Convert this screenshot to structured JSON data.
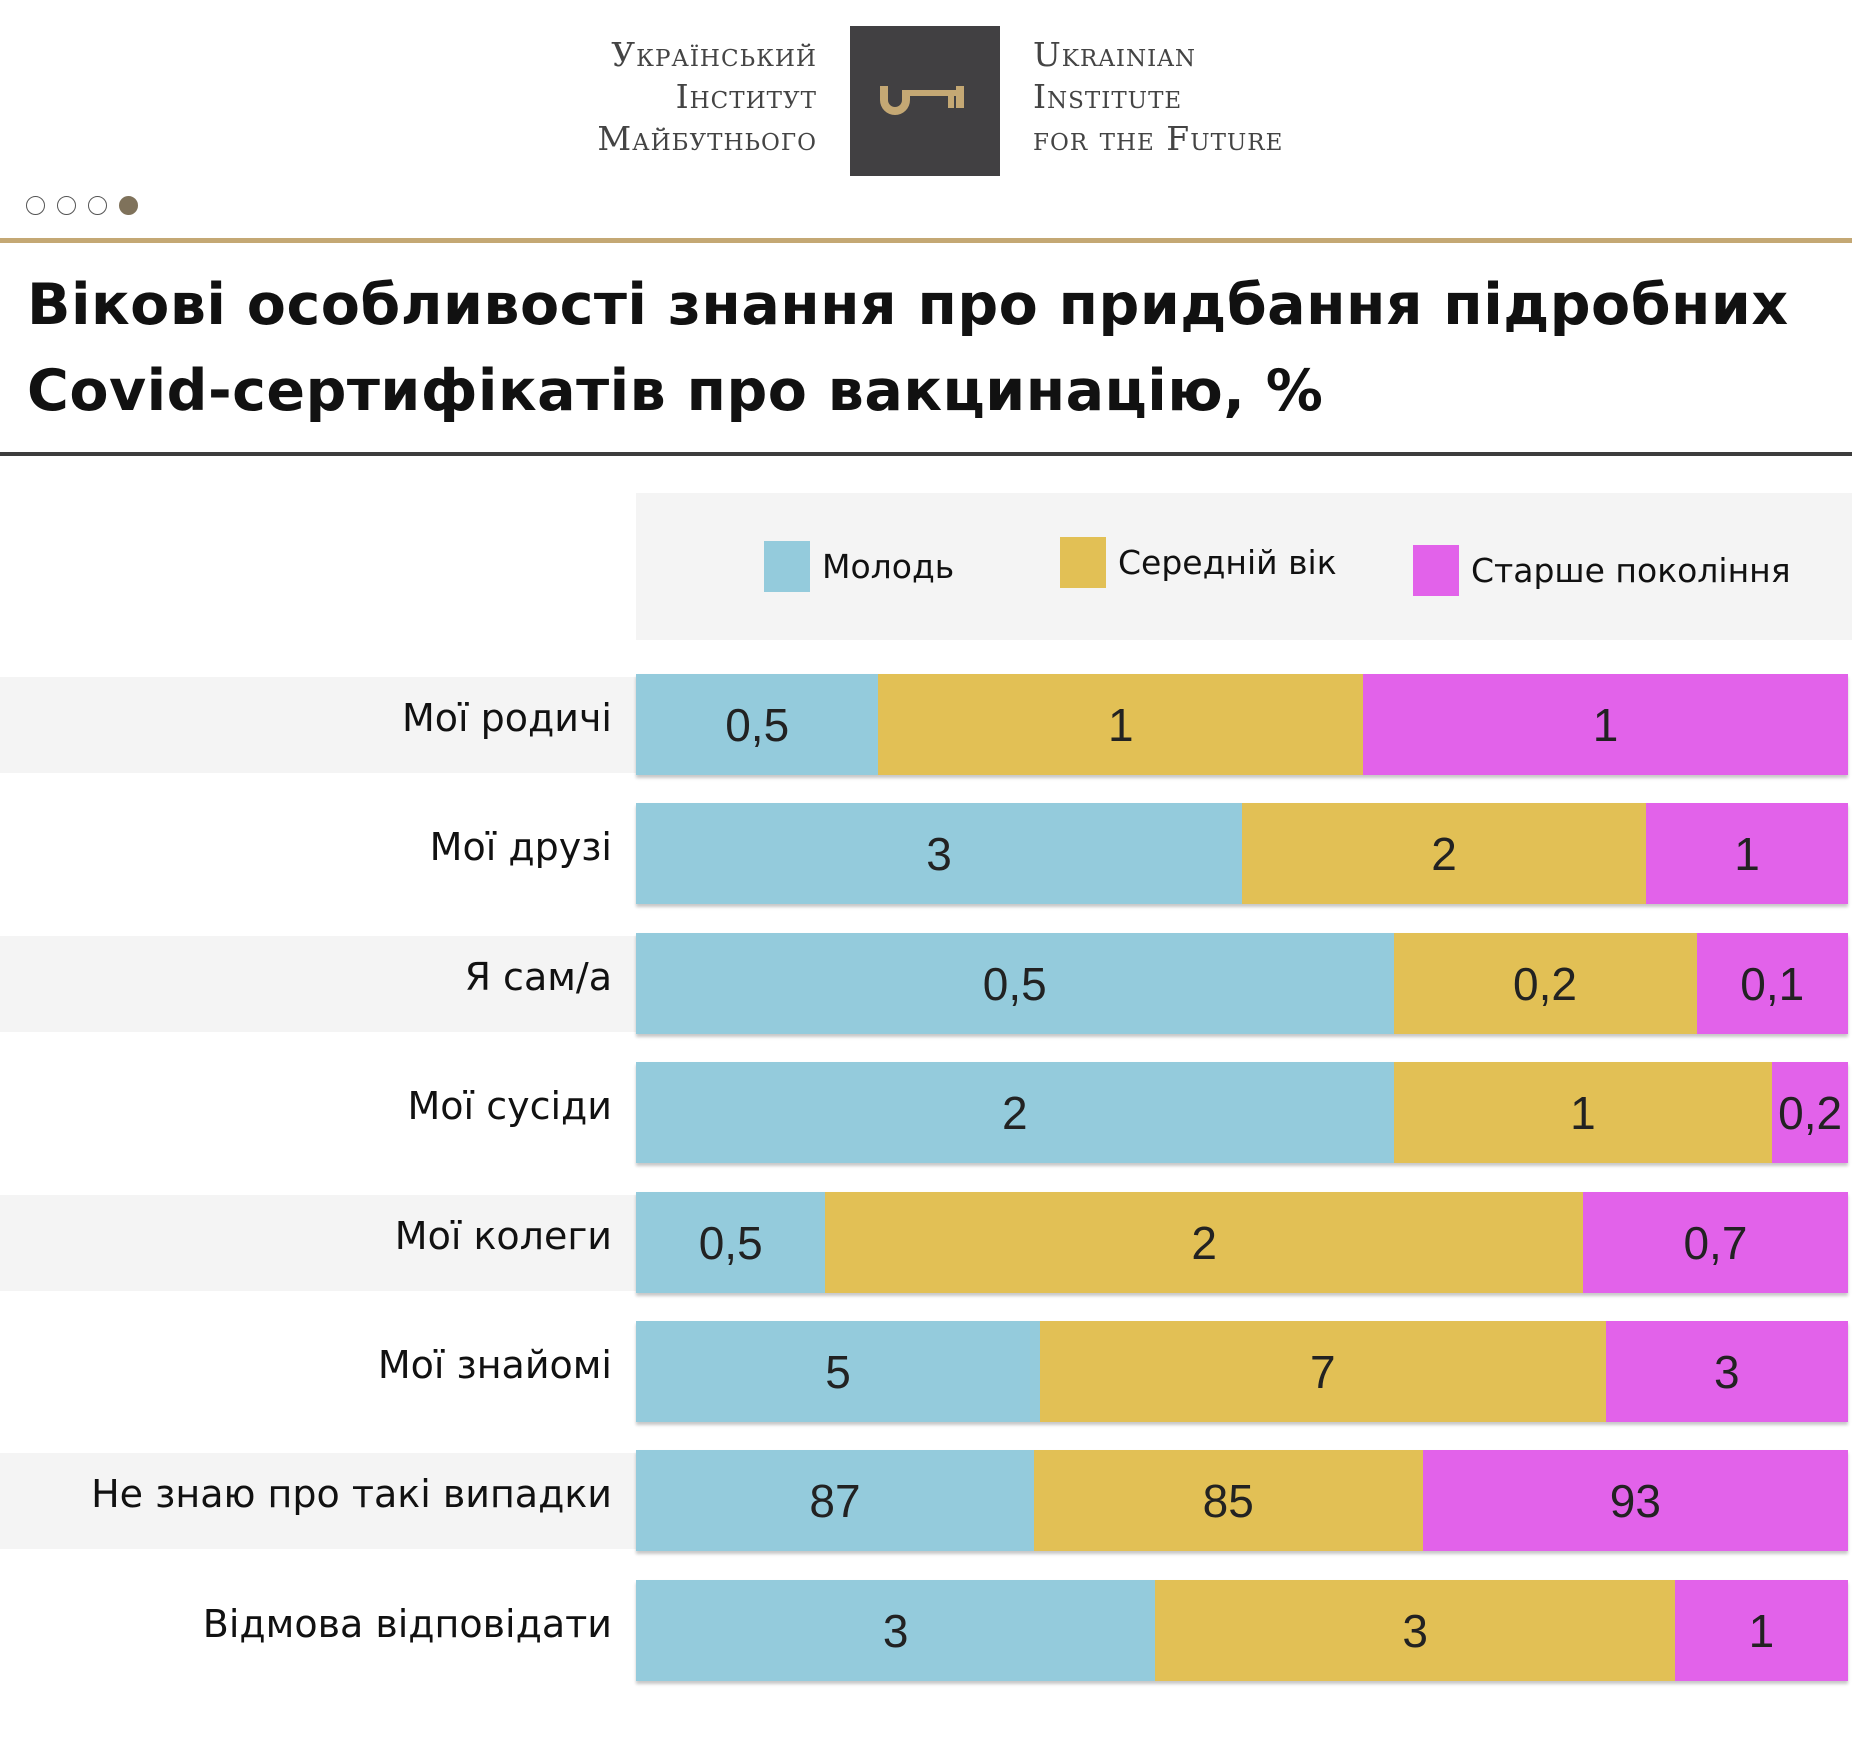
{
  "logo": {
    "left_lines": [
      "Український",
      "Інститут",
      "Майбутнього"
    ],
    "right_lines": [
      "Ukrainian",
      "Institute",
      "for the Future"
    ],
    "icon": "key-icon",
    "box_color": "#414042",
    "key_color": "#c4a874"
  },
  "pager": {
    "count": 4,
    "active_index": 3
  },
  "colors": {
    "gold_rule": "#c4a874",
    "dark_rule": "#3d3d3d"
  },
  "chart_data": {
    "type": "bar",
    "orientation": "horizontal",
    "stacked": true,
    "normalized_per_row": true,
    "title": "Вікові особливості знання про придбання підробних Covid-сертифікатів про вакцинацію, %",
    "title_lines": [
      "Вікові особливості знання про придбання підробних",
      "Covid-сертифікатів про вакцинацію, %"
    ],
    "xlabel": "",
    "ylabel": "",
    "grid": false,
    "legend_position": "top",
    "categories": [
      "Мої родичі",
      "Мої друзі",
      "Я сам/а",
      "Мої сусіди",
      "Мої колеги",
      "Мої знайомі",
      "Не знаю про такі випадки",
      "Відмова відповідати"
    ],
    "series": [
      {
        "name": "Молодь",
        "color": "#94cbdc",
        "values": [
          0.5,
          3,
          0.5,
          2,
          0.5,
          5,
          87,
          3
        ],
        "labels": [
          "0,5",
          "3",
          "0,5",
          "2",
          "0,5",
          "5",
          "87",
          "3"
        ]
      },
      {
        "name": "Середній вік",
        "color": "#e2c055",
        "values": [
          1,
          2,
          0.2,
          1,
          2,
          7,
          85,
          3
        ],
        "labels": [
          "1",
          "2",
          "0,2",
          "1",
          "2",
          "7",
          "85",
          "3"
        ]
      },
      {
        "name": "Старше покоління",
        "color": "#e262ea",
        "values": [
          1,
          1,
          0.1,
          0.2,
          0.7,
          3,
          93,
          1
        ],
        "labels": [
          "1",
          "1",
          "0,1",
          "0,2",
          "0,7",
          "3",
          "93",
          "1"
        ]
      }
    ]
  }
}
